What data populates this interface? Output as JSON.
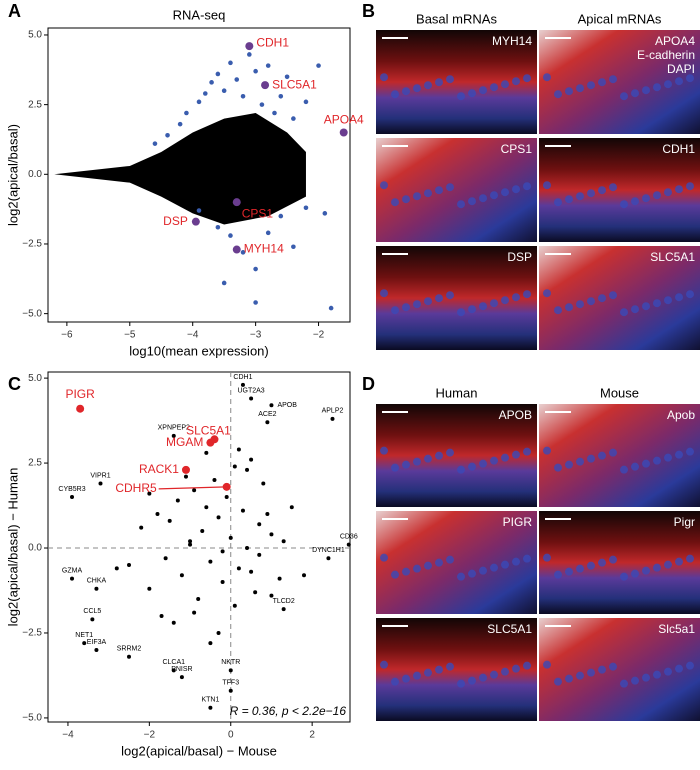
{
  "panel_labels": [
    "A",
    "B",
    "C",
    "D"
  ],
  "chart_data": [
    {
      "type": "scatter",
      "title": "RNA-seq",
      "x_label": "log10(mean expression)",
      "y_label": "log2(apical/basal)",
      "xlim": [
        -6.3,
        -1.5
      ],
      "ylim": [
        -5.3,
        5.25
      ],
      "xticks": [
        {
          "value": -6,
          "label": "−6"
        },
        {
          "value": -5,
          "label": "−5"
        },
        {
          "value": -4,
          "label": "−4"
        },
        {
          "value": -3,
          "label": "−3"
        },
        {
          "value": -2,
          "label": "−2"
        }
      ],
      "yticks": [
        {
          "value": 5,
          "label": "5.0"
        },
        {
          "value": 2.5,
          "label": "2.5"
        },
        {
          "value": 0,
          "label": "0.0"
        },
        {
          "value": -2.5,
          "label": "−2.5"
        },
        {
          "value": -5,
          "label": "−5.0"
        }
      ],
      "cloud_color": "#000000",
      "series": [
        {
          "color": "#3a5dae",
          "size": 2.3,
          "x": [
            -4.6,
            -4.4,
            -4.2,
            -4.1,
            -3.9,
            -3.8,
            -3.7,
            -3.6,
            -3.5,
            -3.4,
            -3.3,
            -3.2,
            -3.1,
            -3.0,
            -2.9,
            -2.8,
            -2.7,
            -2.6,
            -2.5,
            -2.4,
            -2.2,
            -2.0,
            -1.9,
            -3.9,
            -3.6,
            -3.4,
            -3.2,
            -3.0,
            -2.8,
            -2.6,
            -2.4,
            -2.2,
            -3.5,
            -3.0,
            -1.8
          ],
          "values": [
            1.1,
            1.4,
            1.8,
            2.2,
            2.6,
            2.9,
            3.3,
            3.6,
            3.0,
            4.0,
            3.4,
            2.8,
            4.3,
            3.7,
            2.5,
            3.9,
            2.2,
            2.8,
            3.5,
            2.0,
            2.6,
            3.9,
            -1.4,
            -1.3,
            -1.9,
            -2.2,
            -2.8,
            -3.4,
            -2.1,
            -1.5,
            -2.6,
            -1.2,
            -3.9,
            -4.6,
            -4.8
          ]
        },
        {
          "color": "#6a3d8f",
          "size": 4,
          "label_color": "#e0262a",
          "label_size": 12,
          "x": [
            -3.1,
            -2.85,
            -1.6,
            -3.3,
            -3.95,
            -3.3
          ],
          "values": [
            4.6,
            3.2,
            1.5,
            -1.0,
            -1.7,
            -2.7
          ],
          "point_labels": [
            "CDH1",
            "SLC5A1",
            "APOA4",
            "CPS1",
            "DSP",
            "MYH14"
          ]
        }
      ]
    },
    {
      "type": "scatter",
      "x_label": "log2(apical/basal) − Mouse",
      "y_label": "log2(apical/basal) − Human",
      "annotation": "R = 0.36, p < 2.2e−16",
      "zero_lines": true,
      "xlim": [
        -4.49,
        2.93
      ],
      "ylim": [
        -5.12,
        5.18
      ],
      "xticks": [
        {
          "value": -4,
          "label": "−4"
        },
        {
          "value": -2,
          "label": "−2"
        },
        0,
        2
      ],
      "yticks": [
        {
          "value": 5,
          "label": "5.0"
        },
        {
          "value": 2.5,
          "label": "2.5"
        },
        {
          "value": 0,
          "label": "0.0"
        },
        {
          "value": -2.5,
          "label": "−2.5"
        },
        {
          "value": -5,
          "label": "−5.0"
        }
      ],
      "series": [
        {
          "color": "#000000",
          "size": 2,
          "x": [
            -2.5,
            -2.2,
            -2.0,
            -1.8,
            -1.6,
            -1.5,
            -1.3,
            -1.2,
            -1.0,
            -0.9,
            -0.8,
            -0.7,
            -0.6,
            -0.5,
            -0.4,
            -0.3,
            -0.2,
            -0.1,
            0.0,
            0.1,
            0.2,
            0.3,
            0.4,
            0.5,
            0.6,
            0.7,
            0.8,
            1.0,
            1.2,
            1.5,
            -1.4,
            -1.1,
            -0.9,
            -0.6,
            -0.3,
            0.1,
            0.4,
            0.7,
            1.0,
            -2.0,
            -1.7,
            -0.5,
            0.2,
            0.9,
            -1.0,
            -0.2,
            0.5,
            1.3,
            -2.8,
            1.8
          ],
          "values": [
            -0.5,
            0.6,
            -1.2,
            1.0,
            -0.3,
            0.8,
            1.4,
            -0.8,
            0.2,
            1.7,
            -1.5,
            0.5,
            1.2,
            -0.4,
            2.0,
            0.9,
            -1.0,
            1.5,
            0.3,
            2.4,
            -0.6,
            1.1,
            0.0,
            2.6,
            -1.3,
            0.7,
            1.9,
            0.4,
            -0.9,
            1.2,
            -2.2,
            2.1,
            -1.9,
            2.8,
            -2.5,
            -1.7,
            2.3,
            -0.2,
            -1.4,
            1.6,
            -2.0,
            -2.8,
            2.9,
            1.0,
            0.1,
            -0.1,
            -0.7,
            0.2,
            -0.6,
            -0.8
          ]
        },
        {
          "color": "#000000",
          "size": 2,
          "label_color": "#000000",
          "label_size": 7,
          "x": [
            1.0,
            0.3,
            0.5,
            0.9,
            2.5,
            -1.4,
            -3.2,
            -3.9,
            2.9,
            2.4,
            -3.9,
            -3.3,
            -3.4,
            -3.6,
            -3.3,
            -2.5,
            -1.4,
            -1.2,
            0.0,
            1.3,
            0.0,
            -0.5
          ],
          "values": [
            4.2,
            4.8,
            4.4,
            3.7,
            3.8,
            3.3,
            1.9,
            1.5,
            0.1,
            -0.3,
            -0.9,
            -1.2,
            -2.1,
            -2.8,
            -3.0,
            -3.2,
            -3.6,
            -3.8,
            -3.6,
            -1.8,
            -4.2,
            -4.7
          ],
          "point_labels": [
            "APOB",
            "CDH1",
            "UGT2A3",
            "ACE2",
            "APLP2",
            "XPNPEP2",
            "VIPR1",
            "CYB5R3",
            "CD36",
            "DYNC1H1",
            "GZMA",
            "CHKA",
            "CCL5",
            "NET1",
            "EIF3A",
            "SRRM2",
            "CLCA1",
            "PNISR",
            "NKTR",
            "TLCD2",
            "TFF3",
            "KTN1"
          ]
        },
        {
          "color": "#e0262a",
          "size": 4,
          "label_color": "#e0262a",
          "label_size": 12,
          "x": [
            -3.7,
            -0.4,
            -0.5,
            -1.1,
            -0.1
          ],
          "values": [
            4.1,
            3.2,
            3.1,
            2.3,
            1.8
          ],
          "point_labels": [
            "PIGR",
            "SLC5A1",
            "MGAM",
            "RACK1",
            "CDHR5"
          ]
        }
      ]
    }
  ],
  "images": {
    "B": {
      "columns": [
        "Basal mRNAs",
        "Apical mRNAs"
      ],
      "tiles": [
        [
          "MYH14",
          "APOA4"
        ],
        [
          "CPS1",
          "CDH1"
        ],
        [
          "DSP",
          "SLC5A1"
        ]
      ],
      "stain_legend": [
        "E-cadherin",
        "DAPI"
      ]
    },
    "D": {
      "columns": [
        "Human",
        "Mouse"
      ],
      "tiles": [
        [
          "APOB",
          "Apob"
        ],
        [
          "PIGR",
          "Pigr"
        ],
        [
          "SLC5A1",
          "Slc5a1"
        ]
      ]
    }
  }
}
